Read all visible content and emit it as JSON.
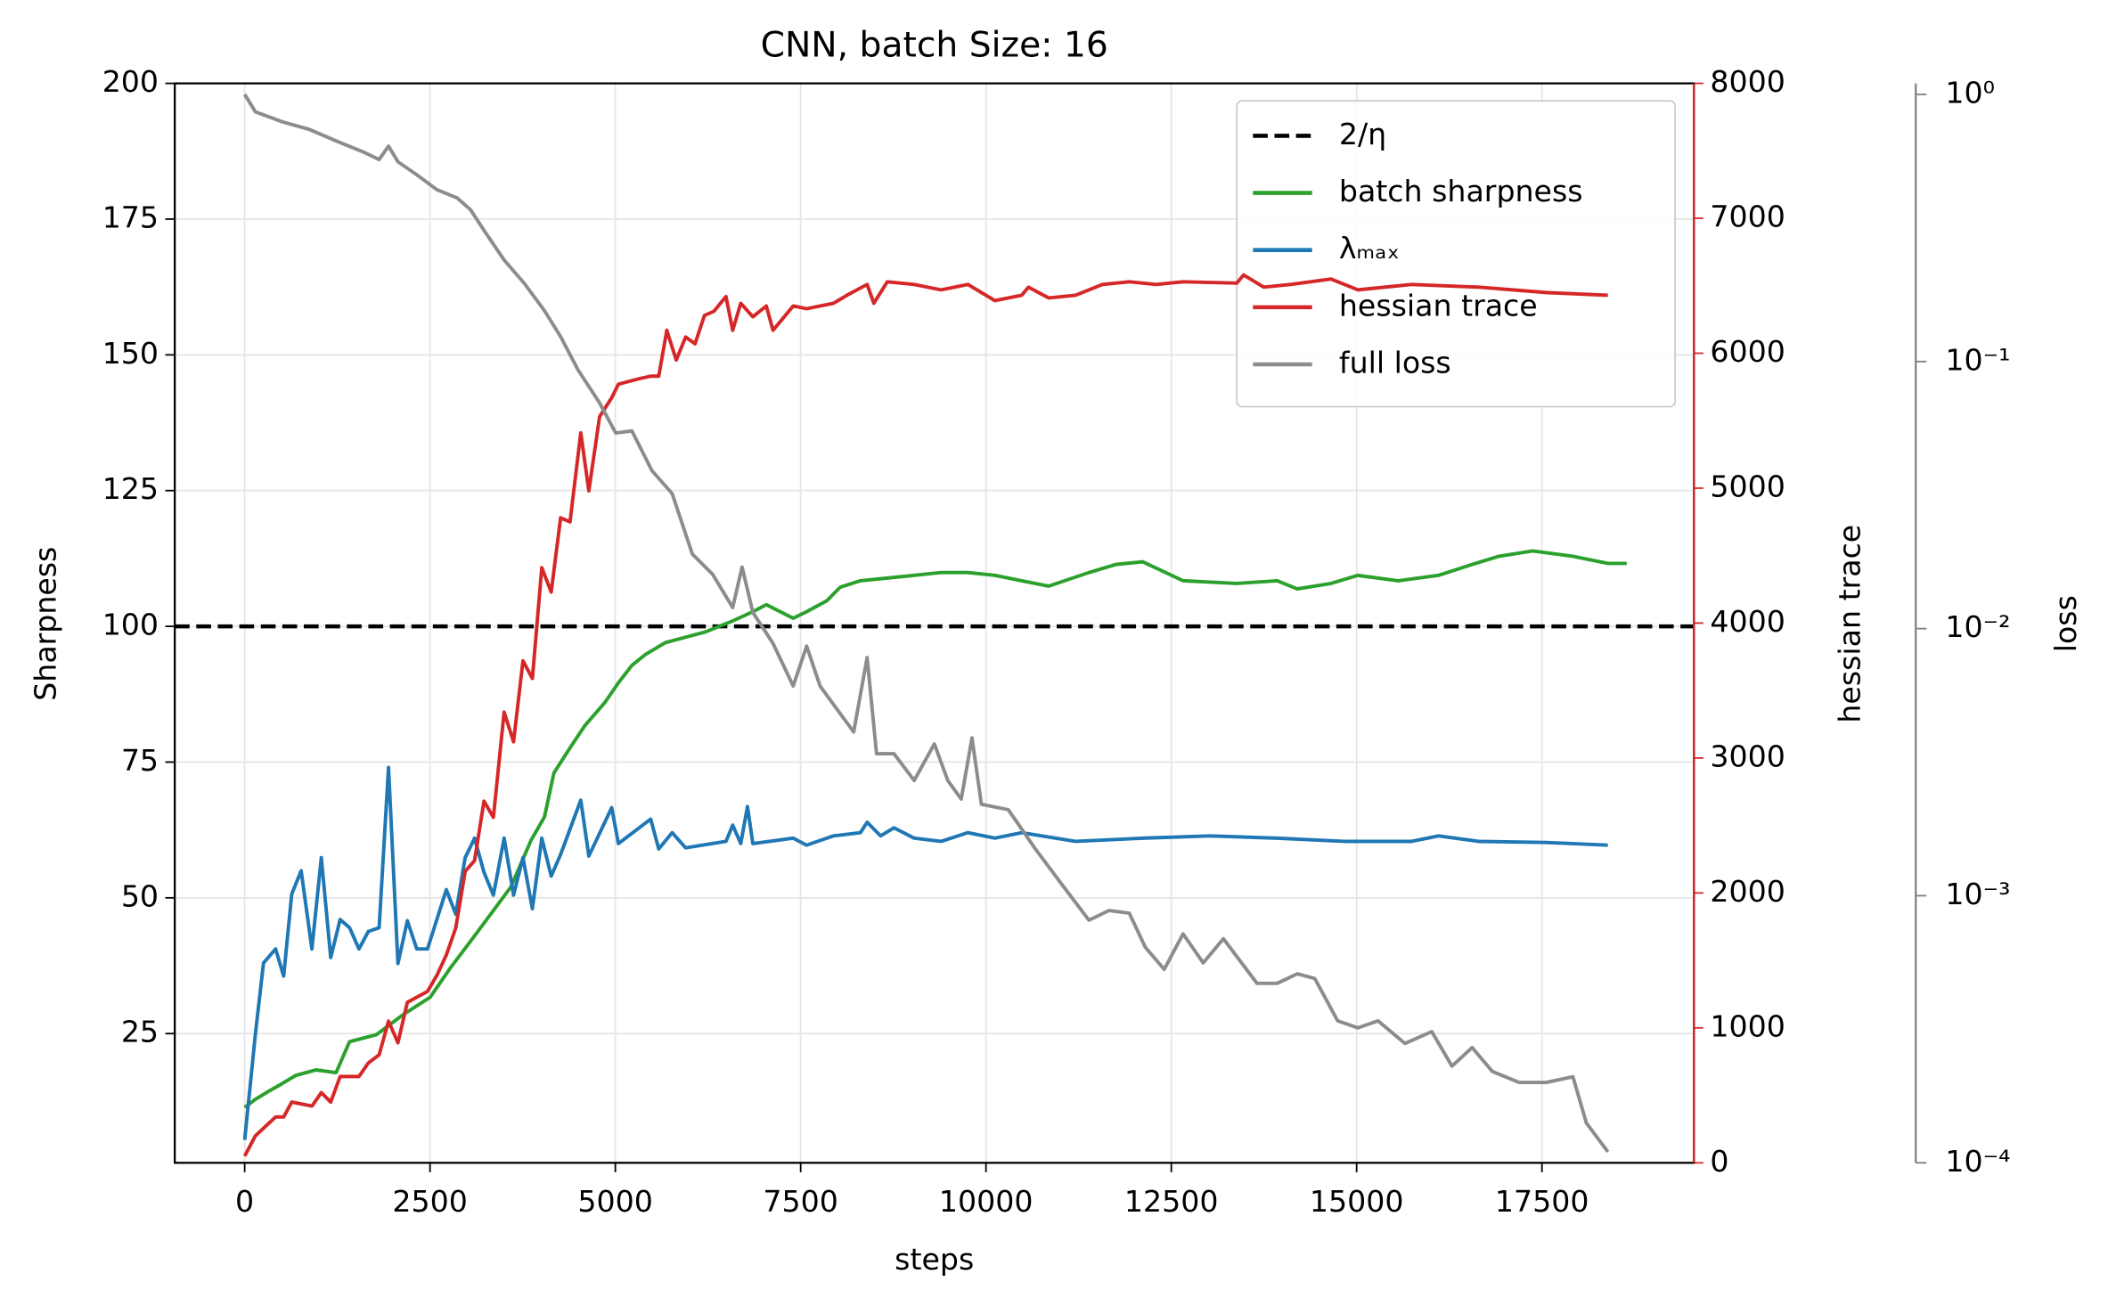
{
  "chart_data": {
    "type": "line",
    "title": "CNN, batch Size: 16",
    "xlabel": "steps",
    "ylabel": "Sharpness",
    "y2label": "hessian trace",
    "y3label": "loss",
    "y2color": "#d62728",
    "y3color": "#808080",
    "xlim": [
      -943,
      19550
    ],
    "xticks": [
      0,
      2500,
      5000,
      7500,
      10000,
      12500,
      15000,
      17500
    ],
    "ylim": [
      1.2,
      200
    ],
    "yticks": [
      25,
      50,
      75,
      100,
      125,
      150,
      175,
      200
    ],
    "y2lim": [
      0,
      8000
    ],
    "y2ticks": [
      0,
      1000,
      2000,
      3000,
      4000,
      5000,
      6000,
      7000,
      8000
    ],
    "y3lim": [
      0.0001,
      1.1
    ],
    "y3scale": "log",
    "y3ticks": [
      {
        "value": 0.0001,
        "label": "10⁻⁴"
      },
      {
        "value": 0.001,
        "label": "10⁻³"
      },
      {
        "value": 0.01,
        "label": "10⁻²"
      },
      {
        "value": 0.1,
        "label": "10⁻¹"
      },
      {
        "value": 1,
        "label": "10⁰"
      }
    ],
    "grid": true,
    "legend": "upper right",
    "series": [
      {
        "name": "2/η",
        "color": "#000000",
        "style": "hline",
        "values": [
          100
        ]
      },
      {
        "name": "batch sharpness",
        "color": "#2ca02c",
        "x": [
          0,
          145,
          326,
          508,
          689,
          961,
          1233,
          1415,
          1777,
          2140,
          2503,
          2775,
          3047,
          3319,
          3591,
          3863,
          4044,
          4171,
          4407,
          4588,
          4860,
          5042,
          5223,
          5404,
          5676,
          5949,
          6221,
          6402,
          6583,
          6855,
          7037,
          7399,
          7581,
          7853,
          8034,
          8306,
          8669,
          9032,
          9394,
          9757,
          10120,
          10482,
          10845,
          11389,
          11752,
          12114,
          12659,
          13384,
          13928,
          14200,
          14654,
          15016,
          15560,
          16104,
          16558,
          16920,
          17374,
          17918,
          18389,
          18643
        ],
        "values": [
          11.4,
          12.9,
          14.4,
          15.8,
          17.3,
          18.3,
          17.8,
          23.5,
          24.8,
          28.5,
          31.7,
          37.1,
          42,
          47,
          52,
          60.6,
          64.9,
          73,
          78,
          81.7,
          86,
          89.6,
          92.8,
          94.8,
          97,
          98,
          99,
          100,
          101,
          102.7,
          104,
          101.5,
          102.7,
          104.7,
          107.2,
          108.4,
          108.9,
          109.4,
          109.9,
          109.9,
          109.4,
          108.4,
          107.4,
          109.9,
          111.4,
          111.9,
          108.4,
          107.9,
          108.4,
          106.9,
          107.9,
          109.4,
          108.4,
          109.4,
          111.4,
          112.9,
          113.9,
          112.9,
          111.6,
          111.6
        ]
      },
      {
        "name": "λₘₐₓ",
        "color": "#1f77b4",
        "x": [
          0,
          145,
          254,
          417,
          526,
          635,
          762,
          907,
          1034,
          1161,
          1288,
          1415,
          1541,
          1668,
          1814,
          1941,
          2067,
          2194,
          2321,
          2466,
          2720,
          2847,
          2974,
          3101,
          3228,
          3355,
          3500,
          3627,
          3754,
          3881,
          4008,
          4135,
          4262,
          4534,
          4643,
          4951,
          5042,
          5477,
          5586,
          5767,
          5949,
          6493,
          6583,
          6692,
          6783,
          6855,
          7399,
          7581,
          7943,
          8306,
          8397,
          8578,
          8760,
          9032,
          9394,
          9757,
          10120,
          10482,
          11208,
          12114,
          13021,
          13928,
          14835,
          15742,
          16104,
          16649,
          17555,
          18389
        ],
        "values": [
          5.4,
          25,
          38,
          40.6,
          35.6,
          50.7,
          55,
          40.6,
          57.4,
          39,
          46,
          44.5,
          40.6,
          43.8,
          44.5,
          74,
          37.9,
          45.8,
          40.6,
          40.6,
          51.5,
          47,
          57.4,
          61,
          54.7,
          50.5,
          61,
          50.5,
          57.4,
          48,
          61,
          54,
          58,
          68,
          57.7,
          66.6,
          60,
          64.5,
          59,
          62,
          59.2,
          60.4,
          63.4,
          60,
          66.8,
          60,
          61,
          59.7,
          61.4,
          62,
          63.9,
          61.4,
          62.9,
          61,
          60.4,
          62,
          61,
          62,
          60.4,
          61,
          61.4,
          61,
          60.4,
          60.4,
          61.4,
          60.4,
          60.2,
          59.7
        ]
      },
      {
        "name": "hessian trace",
        "color": "#d62728",
        "axis": "y2",
        "x": [
          0,
          145,
          417,
          526,
          635,
          907,
          1034,
          1161,
          1288,
          1541,
          1668,
          1814,
          1941,
          2067,
          2194,
          2466,
          2593,
          2720,
          2847,
          2974,
          3101,
          3228,
          3355,
          3500,
          3627,
          3754,
          3881,
          4008,
          4135,
          4262,
          4389,
          4534,
          4643,
          4788,
          4951,
          5042,
          5314,
          5477,
          5586,
          5695,
          5822,
          5949,
          6075,
          6202,
          6329,
          6493,
          6583,
          6692,
          6855,
          7037,
          7127,
          7399,
          7581,
          7943,
          8125,
          8397,
          8487,
          8669,
          9032,
          9394,
          9757,
          10120,
          10482,
          10573,
          10845,
          11208,
          11571,
          11933,
          12296,
          12659,
          13384,
          13475,
          13747,
          14110,
          14654,
          15016,
          15742,
          16649,
          17555,
          18389
        ],
        "values": [
          50,
          200,
          340,
          340,
          450,
          420,
          520,
          450,
          640,
          640,
          740,
          800,
          1050,
          890,
          1190,
          1270,
          1390,
          1540,
          1740,
          2160,
          2240,
          2680,
          2560,
          3340,
          3120,
          3720,
          3590,
          4410,
          4230,
          4780,
          4750,
          5410,
          4980,
          5530,
          5670,
          5770,
          5810,
          5830,
          5830,
          6170,
          5950,
          6120,
          6070,
          6280,
          6310,
          6420,
          6170,
          6370,
          6270,
          6350,
          6170,
          6350,
          6330,
          6370,
          6430,
          6510,
          6370,
          6530,
          6510,
          6470,
          6510,
          6390,
          6430,
          6490,
          6410,
          6430,
          6510,
          6530,
          6510,
          6530,
          6520,
          6580,
          6490,
          6510,
          6550,
          6470,
          6510,
          6490,
          6450,
          6430
        ]
      },
      {
        "name": "full loss",
        "color": "#8c8c8c",
        "axis": "y3",
        "x": [
          0,
          145,
          508,
          870,
          1233,
          1596,
          1814,
          1941,
          2067,
          2321,
          2593,
          2865,
          3047,
          3228,
          3500,
          3772,
          4044,
          4262,
          4498,
          4788,
          5005,
          5223,
          5495,
          5767,
          6039,
          6311,
          6583,
          6710,
          6855,
          7127,
          7399,
          7581,
          7762,
          8034,
          8216,
          8397,
          8524,
          8760,
          9032,
          9304,
          9485,
          9666,
          9811,
          9938,
          10301,
          10664,
          11027,
          11389,
          11661,
          11933,
          12151,
          12405,
          12659,
          12931,
          13203,
          13656,
          13928,
          14200,
          14436,
          14744,
          15016,
          15288,
          15651,
          16014,
          16286,
          16558,
          16830,
          17193,
          17555,
          17918,
          18099,
          18389
        ],
        "values": [
          1,
          0.86,
          0.79,
          0.74,
          0.67,
          0.61,
          0.57,
          0.64,
          0.56,
          0.5,
          0.44,
          0.41,
          0.37,
          0.31,
          0.24,
          0.196,
          0.155,
          0.124,
          0.093,
          0.07,
          0.054,
          0.055,
          0.039,
          0.032,
          0.019,
          0.016,
          0.012,
          0.017,
          0.0115,
          0.0088,
          0.0061,
          0.0086,
          0.0061,
          0.0048,
          0.0041,
          0.0078,
          0.0034,
          0.0034,
          0.0027,
          0.0037,
          0.0027,
          0.0023,
          0.0039,
          0.0022,
          0.0021,
          0.0015,
          0.0011,
          0.00081,
          0.00088,
          0.00086,
          0.00064,
          0.00053,
          0.00072,
          0.00056,
          0.00069,
          0.00047,
          0.00047,
          0.00051,
          0.00049,
          0.00034,
          0.00032,
          0.00034,
          0.00028,
          0.00031,
          0.00023,
          0.00027,
          0.00022,
          0.0002,
          0.0002,
          0.00021,
          0.000141,
          0.00011
        ]
      }
    ]
  }
}
